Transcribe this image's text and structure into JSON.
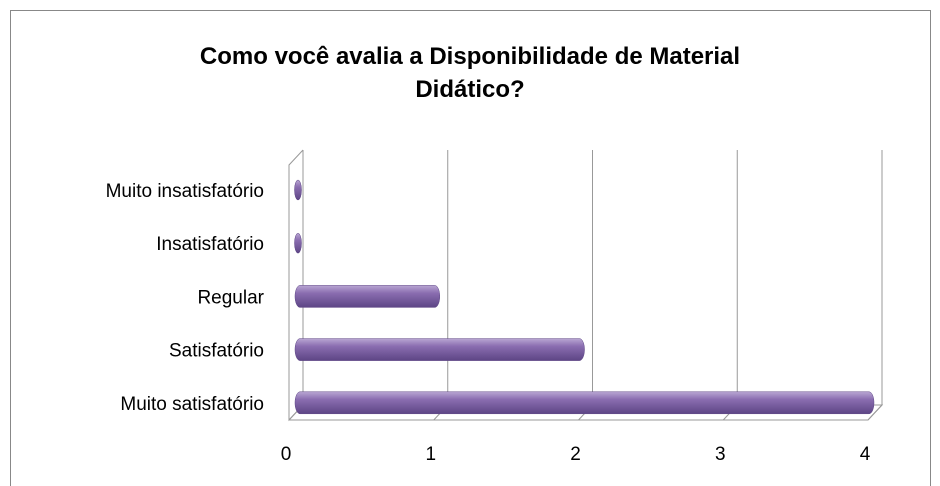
{
  "chart_data": {
    "type": "bar",
    "orientation": "horizontal",
    "title": "Como você avalia a Disponibilidade de Material Didático?",
    "categories": [
      "Muito insatisfatório",
      "Insatisfatório",
      "Regular",
      "Satisfatório",
      "Muito satisfatório"
    ],
    "values": [
      0,
      0,
      1,
      2,
      4
    ],
    "color": "#8064a2",
    "xlim": [
      0,
      4
    ],
    "xticks": [
      0,
      1,
      2,
      3,
      4
    ],
    "grid": true
  }
}
